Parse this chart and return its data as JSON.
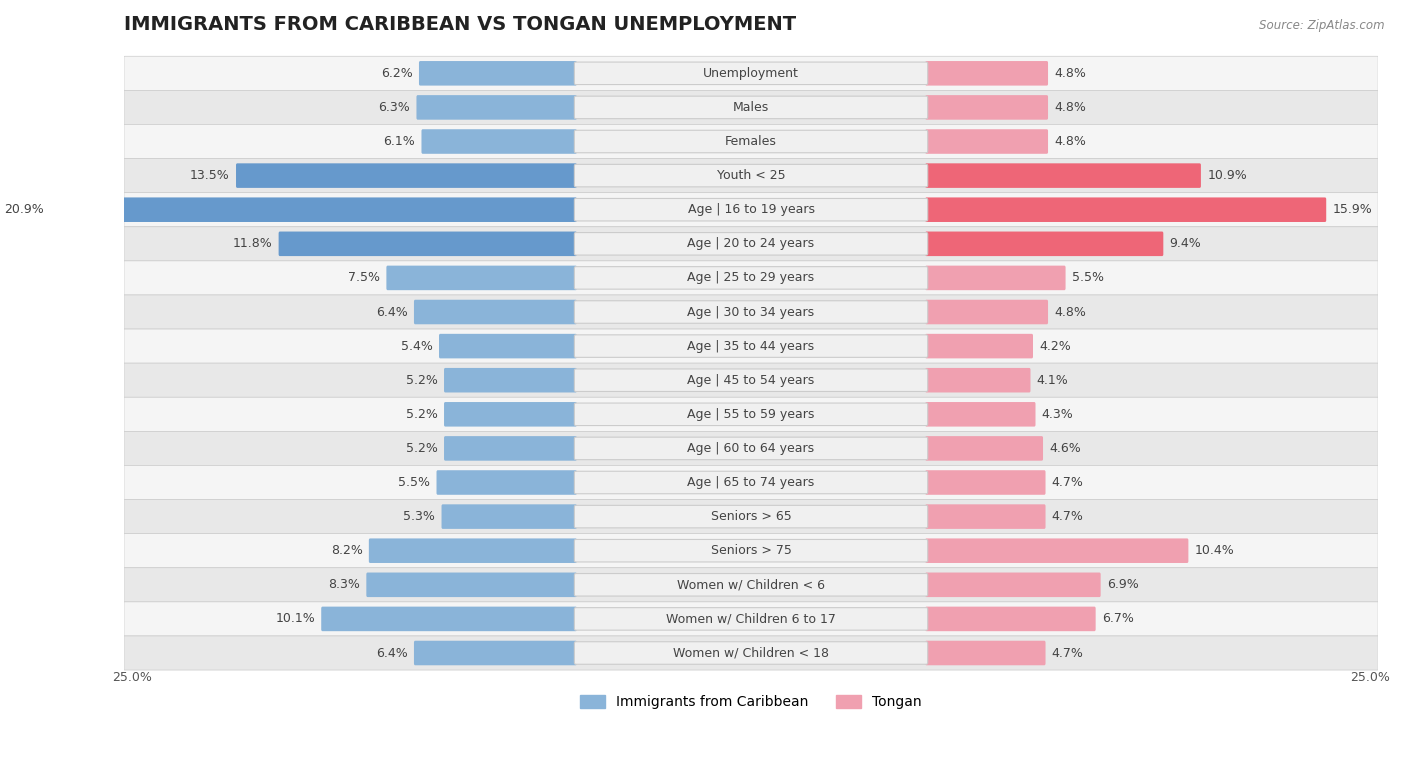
{
  "title": "IMMIGRANTS FROM CARIBBEAN VS TONGAN UNEMPLOYMENT",
  "source": "Source: ZipAtlas.com",
  "categories": [
    "Unemployment",
    "Males",
    "Females",
    "Youth < 25",
    "Age | 16 to 19 years",
    "Age | 20 to 24 years",
    "Age | 25 to 29 years",
    "Age | 30 to 34 years",
    "Age | 35 to 44 years",
    "Age | 45 to 54 years",
    "Age | 55 to 59 years",
    "Age | 60 to 64 years",
    "Age | 65 to 74 years",
    "Seniors > 65",
    "Seniors > 75",
    "Women w/ Children < 6",
    "Women w/ Children 6 to 17",
    "Women w/ Children < 18"
  ],
  "caribbean_values": [
    6.2,
    6.3,
    6.1,
    13.5,
    20.9,
    11.8,
    7.5,
    6.4,
    5.4,
    5.2,
    5.2,
    5.2,
    5.5,
    5.3,
    8.2,
    8.3,
    10.1,
    6.4
  ],
  "tongan_values": [
    4.8,
    4.8,
    4.8,
    10.9,
    15.9,
    9.4,
    5.5,
    4.8,
    4.2,
    4.1,
    4.3,
    4.6,
    4.7,
    4.7,
    10.4,
    6.9,
    6.7,
    4.7
  ],
  "caribbean_color": "#8ab4d9",
  "tongan_color": "#f0a0b0",
  "caribbean_highlight_color": "#6699cc",
  "tongan_highlight_color": "#ee6677",
  "highlight_rows": [
    3,
    4,
    5
  ],
  "xlim": 25.0,
  "background_color": "#ffffff",
  "row_bg_odd": "#f5f5f5",
  "row_bg_even": "#e8e8e8",
  "row_border_color": "#cccccc",
  "title_fontsize": 14,
  "label_fontsize": 9,
  "value_fontsize": 9,
  "legend_fontsize": 10,
  "center_label_box_color": "#f0f0f0",
  "center_label_border_color": "#cccccc"
}
